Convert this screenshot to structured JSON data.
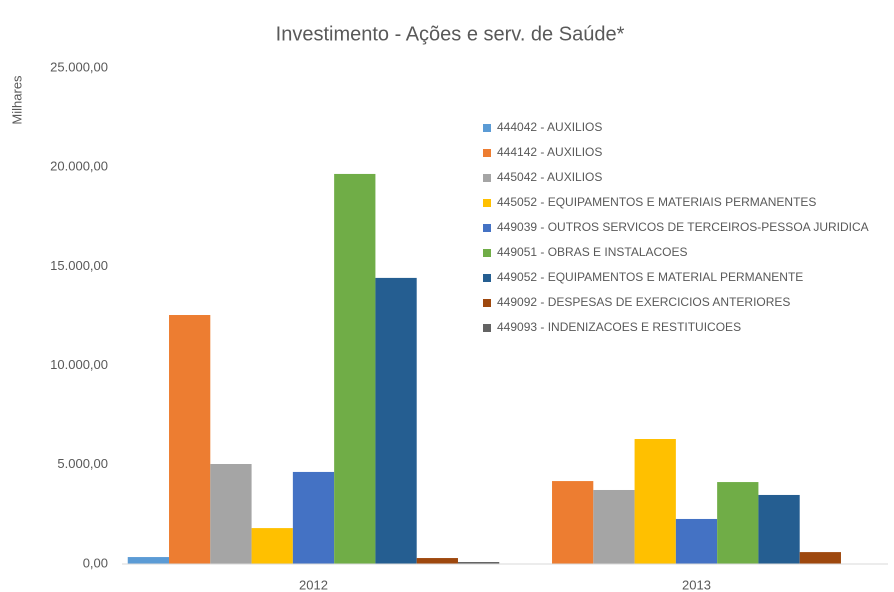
{
  "chart_data": {
    "type": "bar",
    "title": "Investimento - Ações e serv. de Saúde*",
    "y_label": "Milhares",
    "categories": [
      "2012",
      "2013"
    ],
    "ylim": [
      0,
      25000
    ],
    "yticks": [
      {
        "value": 0,
        "label": "0,00"
      },
      {
        "value": 5000,
        "label": "5.000,00"
      },
      {
        "value": 10000,
        "label": "10.000,00"
      },
      {
        "value": 15000,
        "label": "15.000,00"
      },
      {
        "value": 20000,
        "label": "20.000,00"
      },
      {
        "value": 25000,
        "label": "25.000,00"
      }
    ],
    "grid": false,
    "legend": "upper right",
    "series": [
      {
        "name": "444042 - AUXILIOS",
        "color": "#5b9bd5",
        "values": [
          350,
          0
        ]
      },
      {
        "name": "444142 - AUXILIOS",
        "color": "#ed7d31",
        "values": [
          12550,
          4180
        ]
      },
      {
        "name": "445042 - AUXILIOS",
        "color": "#a5a5a5",
        "values": [
          5040,
          3730
        ]
      },
      {
        "name": "445052 - EQUIPAMENTOS E MATERIAIS PERMANENTES",
        "color": "#ffc000",
        "values": [
          1810,
          6300
        ]
      },
      {
        "name": "449039 - OUTROS SERVICOS DE TERCEIROS-PESSOA JURIDICA",
        "color": "#4472c4",
        "values": [
          4640,
          2270
        ]
      },
      {
        "name": "449051 - OBRAS E INSTALACOES",
        "color": "#70ad47",
        "values": [
          19660,
          4130
        ]
      },
      {
        "name": "449052 - EQUIPAMENTOS E MATERIAL PERMANENTE",
        "color": "#255e91",
        "values": [
          14420,
          3480
        ]
      },
      {
        "name": "449092 - DESPESAS DE EXERCICIOS ANTERIORES",
        "color": "#9e480e",
        "values": [
          300,
          600
        ]
      },
      {
        "name": "449093 - INDENIZACOES E RESTITUICOES",
        "color": "#636363",
        "values": [
          100,
          0
        ]
      }
    ]
  }
}
